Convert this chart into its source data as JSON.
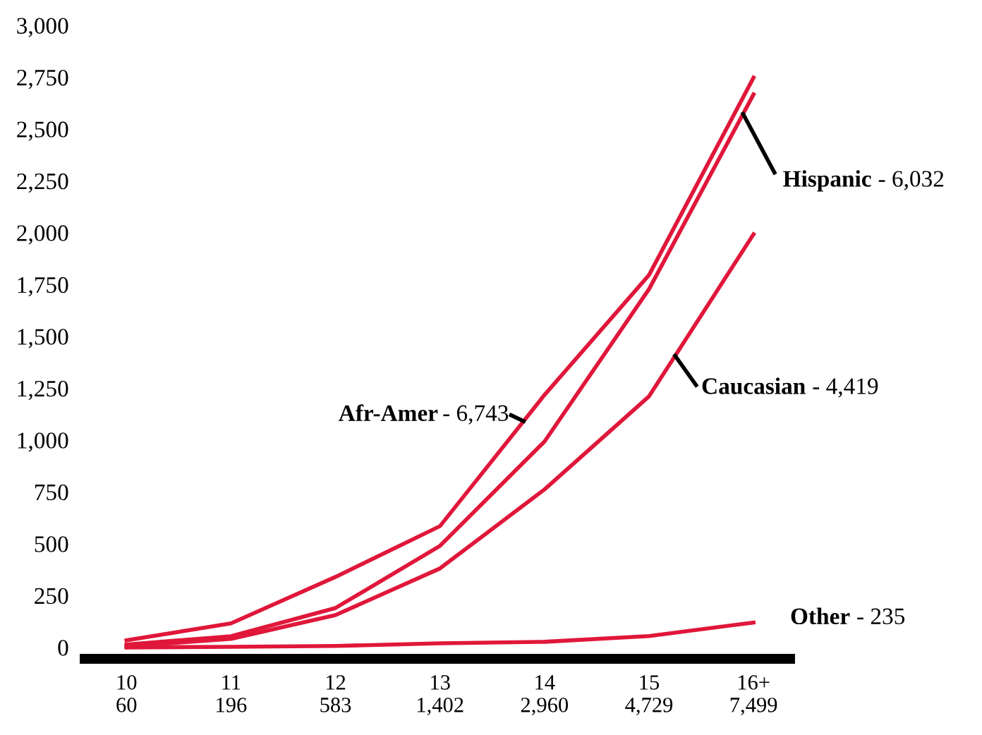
{
  "chart_data": {
    "type": "line",
    "categories": [
      "10\n60",
      "11\n196",
      "12\n583",
      "13\n1,402",
      "14\n2,960",
      "15\n4,729",
      "16+\n7,499"
    ],
    "series": [
      {
        "name": "Afr-Amer",
        "color": "#e0173a",
        "values": [
          34,
          116,
          340,
          585,
          1218,
          1796,
          2748
        ]
      },
      {
        "name": "Hispanic",
        "color": "#e0173a",
        "values": [
          14,
          54,
          190,
          490,
          993,
          1728,
          2667
        ]
      },
      {
        "name": "Caucasian",
        "color": "#e0173a",
        "values": [
          5,
          41,
          156,
          381,
          762,
          1211,
          1993
        ]
      },
      {
        "name": "Other",
        "color": "#e0173a",
        "values": [
          0,
          3,
          7,
          20,
          27,
          55,
          120
        ]
      }
    ],
    "annotations": [
      "- 6,743",
      "- 6,032",
      "- 4,419",
      "- 235"
    ],
    "ylim": [
      -55,
      3000
    ],
    "yticks": [
      {
        "value": 0,
        "label": "0"
      },
      {
        "value": 250,
        "label": "250"
      },
      {
        "value": 500,
        "label": "500"
      },
      {
        "value": 750,
        "label": "750"
      },
      {
        "value": 1000,
        "label": "1,000"
      },
      {
        "value": 1250,
        "label": "1,250"
      },
      {
        "value": 1500,
        "label": "1,500"
      },
      {
        "value": 1750,
        "label": "1,750"
      },
      {
        "value": 2000,
        "label": "2,000"
      },
      {
        "value": 2250,
        "label": "2,250"
      },
      {
        "value": 2500,
        "label": "2,500"
      },
      {
        "value": 2750,
        "label": "2,750"
      },
      {
        "value": 3000,
        "label": "3,000"
      }
    ],
    "grid": false,
    "legend": false,
    "marker": "none",
    "line_style": "solid"
  }
}
